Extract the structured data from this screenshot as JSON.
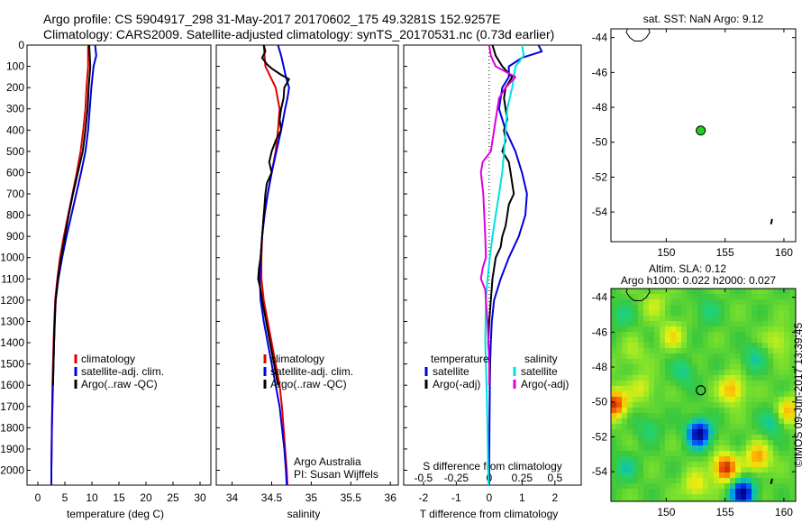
{
  "header": {
    "title_line1": "Argo profile: CS 5904917_298 31-May-2017 20170602_175 49.3281S 152.9257E",
    "title_line2": "Climatology: CARS2009. Satellite-adjusted climatology: synTS_20170531.nc (0.73d earlier)"
  },
  "colors": {
    "climatology": "#e00000",
    "satellite": "#0000dd",
    "argo": "#000000",
    "sal_satellite": "#00e0e0",
    "sal_argo": "#dd00dd",
    "float_marker": "#22cc22",
    "coast": "#000000"
  },
  "chart_data": [
    {
      "type": "line",
      "panel": "temperature",
      "xlabel": "temperature (deg C)",
      "xlim": [
        -2,
        32
      ],
      "xticks": [
        "0",
        "5",
        "10",
        "15",
        "20",
        "25",
        "30"
      ],
      "xtick_values": [
        0,
        5,
        10,
        15,
        20,
        25,
        30
      ],
      "ylim": [
        2070,
        0
      ],
      "yticks": [
        "0",
        "100",
        "200",
        "300",
        "400",
        "500",
        "600",
        "700",
        "800",
        "900",
        "1000",
        "1100",
        "1200",
        "1300",
        "1400",
        "1500",
        "1600",
        "1700",
        "1800",
        "1900",
        "2000"
      ],
      "ytick_values": [
        0,
        100,
        200,
        300,
        400,
        500,
        600,
        700,
        800,
        900,
        1000,
        1100,
        1200,
        1300,
        1400,
        1500,
        1600,
        1700,
        1800,
        1900,
        2000
      ],
      "legend": [
        "climatology",
        "satellite-adj. clim.",
        "Argo(..raw -QC)"
      ],
      "series": [
        {
          "name": "climatology",
          "color_key": "climatology",
          "depth": [
            0,
            100,
            200,
            300,
            400,
            500,
            600,
            700,
            800,
            900,
            1000,
            1100,
            1200,
            1400,
            1600,
            1800,
            2000,
            2070
          ],
          "values": [
            9.3,
            9.3,
            9.0,
            8.8,
            8.4,
            7.9,
            7.2,
            6.4,
            5.6,
            4.8,
            4.1,
            3.6,
            3.2,
            2.9,
            2.7,
            2.6,
            2.5,
            2.5
          ]
        },
        {
          "name": "satellite-adj. clim.",
          "color_key": "satellite",
          "depth": [
            0,
            50,
            100,
            200,
            300,
            400,
            500,
            600,
            700,
            800,
            900,
            1000,
            1100,
            1200,
            1400,
            1600,
            1800,
            2000,
            2070
          ],
          "values": [
            10.6,
            10.8,
            10.3,
            9.9,
            9.6,
            9.3,
            8.8,
            8.0,
            7.1,
            6.2,
            5.3,
            4.5,
            3.8,
            3.3,
            3.0,
            2.8,
            2.6,
            2.5,
            2.5
          ]
        },
        {
          "name": "Argo(..raw -QC)",
          "color_key": "argo",
          "depth": [
            0,
            50,
            100,
            200,
            300,
            400,
            500,
            600,
            700,
            800,
            900,
            1000,
            1100,
            1200,
            1300,
            1400,
            1500,
            1600
          ],
          "values": [
            9.5,
            9.6,
            9.7,
            9.4,
            9.2,
            8.8,
            8.3,
            7.4,
            6.5,
            5.7,
            5.0,
            4.3,
            3.7,
            3.3,
            3.1,
            3.0,
            2.9,
            2.8
          ]
        }
      ]
    },
    {
      "type": "line",
      "panel": "salinity",
      "xlabel": "salinity",
      "xlim": [
        33.8,
        36.1
      ],
      "xticks": [
        "34",
        "34.5",
        "35",
        "35.5",
        "36"
      ],
      "xtick_values": [
        34,
        34.5,
        35,
        35.5,
        36
      ],
      "ylim": [
        2070,
        0
      ],
      "legend": [
        "climatology",
        "satellite-adj. clim.",
        "Argo(..raw -QC)"
      ],
      "annotation": [
        "Argo Australia",
        "PI: Susan Wijffels"
      ],
      "series": [
        {
          "name": "climatology",
          "color_key": "climatology",
          "depth": [
            0,
            100,
            200,
            300,
            400,
            500,
            600,
            700,
            800,
            900,
            1000,
            1100,
            1200,
            1300,
            1400,
            1500,
            1600,
            1700,
            1800,
            1900,
            2000,
            2070
          ],
          "values": [
            34.4,
            34.42,
            34.55,
            34.6,
            34.58,
            34.55,
            34.5,
            34.45,
            34.4,
            34.38,
            34.37,
            34.37,
            34.4,
            34.45,
            34.5,
            34.55,
            34.6,
            34.63,
            34.65,
            34.67,
            34.69,
            34.7
          ]
        },
        {
          "name": "satellite-adj. clim.",
          "color_key": "satellite",
          "depth": [
            0,
            50,
            100,
            150,
            200,
            250,
            300,
            400,
            500,
            600,
            700,
            800,
            900,
            1000,
            1100,
            1200,
            1300,
            1400,
            1500,
            1600,
            1700,
            1800,
            1900,
            2000,
            2070
          ],
          "values": [
            34.58,
            34.62,
            34.65,
            34.68,
            34.72,
            34.7,
            34.67,
            34.62,
            34.56,
            34.5,
            34.45,
            34.41,
            34.38,
            34.36,
            34.35,
            34.36,
            34.4,
            34.45,
            34.5,
            34.55,
            34.6,
            34.63,
            34.66,
            34.68,
            34.69
          ]
        },
        {
          "name": "Argo(..raw -QC)",
          "color_key": "argo",
          "depth": [
            0,
            30,
            60,
            90,
            110,
            140,
            160,
            200,
            250,
            300,
            350,
            400,
            450,
            500,
            550,
            600,
            650,
            700,
            800,
            900,
            1000,
            1050,
            1100,
            1150,
            1200,
            1300,
            1400,
            1500,
            1600
          ],
          "values": [
            34.4,
            34.42,
            34.38,
            34.44,
            34.5,
            34.62,
            34.72,
            34.66,
            34.65,
            34.62,
            34.6,
            34.62,
            34.55,
            34.5,
            34.47,
            34.5,
            34.44,
            34.42,
            34.4,
            34.38,
            34.36,
            34.34,
            34.33,
            34.36,
            34.38,
            34.43,
            34.48,
            34.53,
            34.58
          ]
        }
      ]
    },
    {
      "type": "line",
      "panel": "difference",
      "xlabel": "T difference from climatology",
      "xlim": [
        -2.6,
        2.8
      ],
      "xticks": [
        "-2",
        "-1",
        "0",
        "1",
        "2"
      ],
      "xtick_values": [
        -2,
        -1,
        0,
        1,
        2
      ],
      "x2label": "S difference from climatology",
      "x2ticks": [
        "-0.5",
        "-0.25",
        "0",
        "0.25",
        "0.5"
      ],
      "x2tick_positions_in_T": [
        -2,
        -1,
        0,
        1,
        2
      ],
      "ylim": [
        2070,
        0
      ],
      "legend_left_title": "temperature",
      "legend_right_title": "salinity",
      "legend": [
        "satellite",
        "Argo(-adj)",
        "satellite",
        "Argo(-adj)"
      ],
      "series": [
        {
          "name": "temperature satellite",
          "color_key": "satellite",
          "depth": [
            0,
            30,
            60,
            100,
            150,
            200,
            300,
            400,
            500,
            600,
            700,
            800,
            900,
            1000,
            1100,
            1200,
            1300,
            1400,
            1500,
            1600,
            1800,
            2000,
            2070
          ],
          "values": [
            1.5,
            1.6,
            1.0,
            0.6,
            0.6,
            0.4,
            0.3,
            0.5,
            0.8,
            1.0,
            1.15,
            1.1,
            0.9,
            0.6,
            0.35,
            0.15,
            0.08,
            0.05,
            0.03,
            0.02,
            0.01,
            0.0,
            0.0
          ]
        },
        {
          "name": "temperature Argo(-adj)",
          "color_key": "argo",
          "depth": [
            0,
            50,
            100,
            150,
            200,
            250,
            300,
            350,
            400,
            450,
            500,
            550,
            600,
            650,
            700,
            750,
            800,
            850,
            900,
            950,
            1000,
            1100,
            1200,
            1300,
            1400,
            1500,
            1600
          ],
          "values": [
            0.1,
            0.2,
            0.4,
            0.7,
            0.5,
            0.45,
            0.5,
            0.55,
            0.45,
            0.5,
            0.4,
            0.6,
            0.65,
            0.7,
            0.75,
            0.6,
            0.55,
            0.5,
            0.4,
            0.35,
            0.2,
            0.1,
            0.05,
            0.0,
            -0.03,
            0.02,
            0.0
          ]
        },
        {
          "name": "salinity satellite",
          "color_key": "sal_satellite",
          "depth": [
            0,
            50,
            100,
            200,
            300,
            400,
            500,
            600,
            700,
            800,
            900,
            1000,
            1100,
            1200,
            1400,
            1600,
            1800,
            2000,
            2070
          ],
          "values": [
            1.0,
            1.05,
            0.8,
            0.7,
            0.55,
            0.5,
            0.45,
            0.4,
            0.3,
            0.2,
            0.1,
            0.02,
            -0.05,
            -0.1,
            -0.12,
            -0.08,
            -0.05,
            -0.03,
            -0.02
          ]
        },
        {
          "name": "salinity Argo(-adj)",
          "color_key": "sal_argo",
          "depth": [
            0,
            50,
            100,
            150,
            200,
            250,
            300,
            400,
            500,
            550,
            600,
            700,
            800,
            900,
            1000,
            1050,
            1100,
            1150,
            1200,
            1300,
            1400,
            1500,
            1600
          ],
          "values": [
            0.0,
            0.05,
            0.2,
            0.8,
            0.5,
            0.3,
            0.25,
            0.15,
            0.05,
            -0.2,
            -0.25,
            -0.18,
            -0.15,
            -0.12,
            -0.1,
            -0.2,
            -0.25,
            -0.12,
            -0.1,
            -0.05,
            -0.02,
            0.0,
            0.0
          ]
        }
      ]
    },
    {
      "type": "scatter",
      "panel": "sst-map",
      "title": "sat. SST: NaN Argo: 9.12",
      "xlim": [
        145.3,
        161.0
      ],
      "ylim": [
        -55.7,
        -43.5
      ],
      "xticks": [
        "150",
        "155",
        "160"
      ],
      "xtick_values": [
        150,
        155,
        160
      ],
      "yticks": [
        "-44",
        "-46",
        "-48",
        "-50",
        "-52",
        "-54"
      ],
      "ytick_values": [
        -44,
        -46,
        -48,
        -50,
        -52,
        -54
      ],
      "float": {
        "lon": 152.93,
        "lat": -49.33
      }
    },
    {
      "type": "heatmap",
      "panel": "sla-map",
      "title_line1": "Altim. SLA: 0.12",
      "title_line2": "Argo h1000: 0.022 h2000: 0.027",
      "side_label": "©IMOS 09-Jun-2017 13:39:45",
      "xlim": [
        145.3,
        161.0
      ],
      "ylim": [
        -55.7,
        -43.5
      ],
      "xticks": [
        "150",
        "155",
        "160"
      ],
      "xtick_values": [
        150,
        155,
        160
      ],
      "yticks": [
        "-44",
        "-46",
        "-48",
        "-50",
        "-52",
        "-54"
      ],
      "ytick_values": [
        -44,
        -46,
        -48,
        -50,
        -52,
        -54
      ],
      "float": {
        "lon": 152.93,
        "lat": -49.33
      },
      "blobs": [
        {
          "lon": 152.8,
          "lat": -51.8,
          "v": -1.0
        },
        {
          "lon": 156.5,
          "lat": -55.2,
          "v": -1.0
        },
        {
          "lon": 145.6,
          "lat": -50.1,
          "v": 0.85
        },
        {
          "lon": 155.0,
          "lat": -53.8,
          "v": 0.9
        },
        {
          "lon": 157.8,
          "lat": -53.2,
          "v": 0.6
        },
        {
          "lon": 150.5,
          "lat": -46.2,
          "v": 0.35
        },
        {
          "lon": 155.6,
          "lat": -49.3,
          "v": 0.55
        },
        {
          "lon": 148.0,
          "lat": -49.2,
          "v": 0.3
        },
        {
          "lon": 159.5,
          "lat": -46.5,
          "v": 0.3
        },
        {
          "lon": 160.4,
          "lat": -50.5,
          "v": 0.5
        },
        {
          "lon": 146.5,
          "lat": -53.8,
          "v": -0.3
        },
        {
          "lon": 148.5,
          "lat": -51.5,
          "v": -0.25
        },
        {
          "lon": 151.5,
          "lat": -48.3,
          "v": -0.3
        },
        {
          "lon": 157.5,
          "lat": -47.5,
          "v": -0.3
        },
        {
          "lon": 146.2,
          "lat": -45.0,
          "v": -0.25
        },
        {
          "lon": 159.0,
          "lat": -51.2,
          "v": -0.35
        },
        {
          "lon": 153.5,
          "lat": -44.8,
          "v": -0.25
        },
        {
          "lon": 152.5,
          "lat": -54.8,
          "v": 0.4
        },
        {
          "lon": 149.0,
          "lat": -44.4,
          "v": 0.25
        },
        {
          "lon": 147.2,
          "lat": -47.2,
          "v": 0.2
        }
      ]
    }
  ]
}
